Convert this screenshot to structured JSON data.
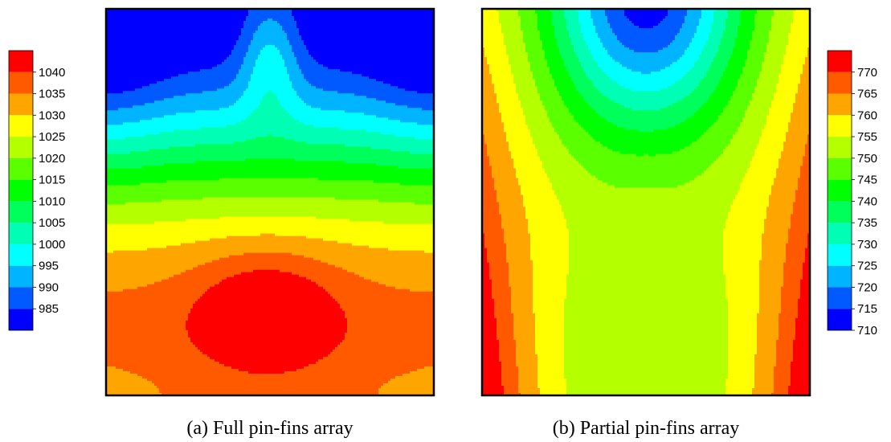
{
  "chart_data": [
    {
      "type": "heatmap",
      "title": "",
      "caption": "(a) Full pin-fins array",
      "xlabel": "",
      "ylabel": "",
      "colorbar": {
        "levels": [
          1040,
          1035,
          1030,
          1025,
          1020,
          1015,
          1010,
          1005,
          1000,
          995,
          990,
          985
        ],
        "colors": [
          "#ff0000",
          "#ff5a00",
          "#ffa500",
          "#ffff00",
          "#b4ff00",
          "#5aff00",
          "#00ff00",
          "#00ff5a",
          "#00ffb4",
          "#00ffff",
          "#00b4ff",
          "#005aff",
          "#0000ff"
        ],
        "min": 982.5,
        "max": 1042.5,
        "placement": "left"
      },
      "field": {
        "description_levels": "temperature field with hot core near lower-center and cool lobes at top corners",
        "hot_spot": {
          "value": 1042,
          "location": "lower-center"
        },
        "cold_spots": [
          {
            "value": 984,
            "location": "top-left corner"
          },
          {
            "value": 984,
            "location": "top-right corner"
          },
          {
            "value": 988,
            "location": "top-center"
          }
        ]
      },
      "grid": false,
      "legend": "left"
    },
    {
      "type": "heatmap",
      "title": "",
      "caption": "(b) Partial pin-fins array",
      "xlabel": "",
      "ylabel": "",
      "colorbar": {
        "levels": [
          770,
          765,
          760,
          755,
          750,
          745,
          740,
          735,
          730,
          725,
          720,
          715,
          710
        ],
        "colors": [
          "#ff0000",
          "#ff5a00",
          "#ffa500",
          "#ffff00",
          "#b4ff00",
          "#5aff00",
          "#00ff00",
          "#00ff5a",
          "#00ffb4",
          "#00ffff",
          "#00b4ff",
          "#005aff",
          "#0000ff"
        ],
        "min": 707.5,
        "max": 772.5,
        "placement": "right"
      },
      "field": {
        "hot_spots": [
          {
            "value": 772,
            "location": "lower-left edge"
          },
          {
            "value": 772,
            "location": "lower-right edge"
          }
        ],
        "cold_spot": {
          "value": 708,
          "location": "top-center"
        },
        "valley": {
          "value": 742,
          "location": "lower-center"
        }
      },
      "grid": false,
      "legend": "right"
    }
  ]
}
